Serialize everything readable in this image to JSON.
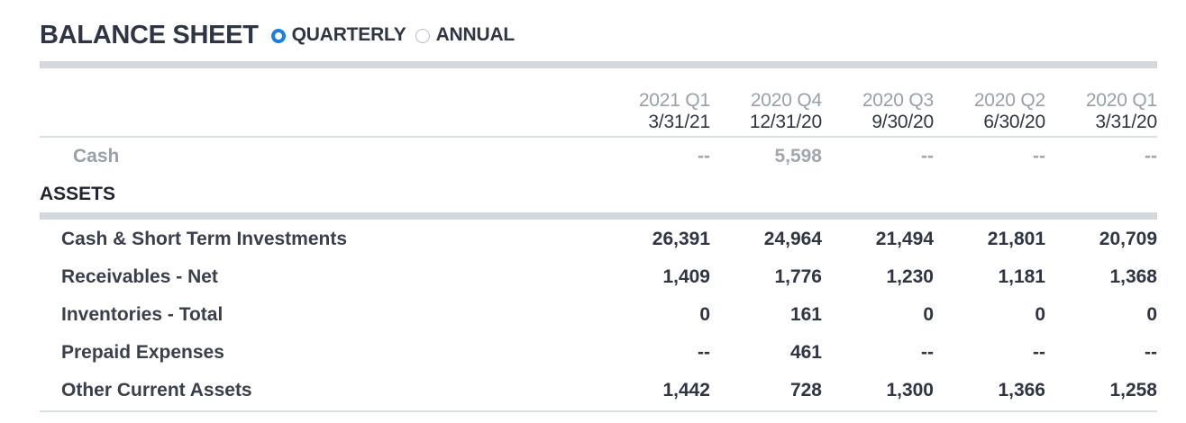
{
  "header": {
    "title": "BALANCE SHEET",
    "options": [
      {
        "label": "QUARTERLY",
        "selected": true
      },
      {
        "label": "ANNUAL",
        "selected": false
      }
    ]
  },
  "columns": [
    {
      "quarter": "2021 Q1",
      "date": "3/31/21"
    },
    {
      "quarter": "2020 Q4",
      "date": "12/31/20"
    },
    {
      "quarter": "2020 Q3",
      "date": "9/30/20"
    },
    {
      "quarter": "2020 Q2",
      "date": "6/30/20"
    },
    {
      "quarter": "2020 Q1",
      "date": "3/31/20"
    }
  ],
  "cash_row": {
    "label": "Cash",
    "values": [
      "--",
      "5,598",
      "--",
      "--",
      "--"
    ]
  },
  "section": {
    "title": "ASSETS"
  },
  "rows": [
    {
      "label": "Cash & Short Term Investments",
      "values": [
        "26,391",
        "24,964",
        "21,494",
        "21,801",
        "20,709"
      ]
    },
    {
      "label": "Receivables - Net",
      "values": [
        "1,409",
        "1,776",
        "1,230",
        "1,181",
        "1,368"
      ]
    },
    {
      "label": "Inventories - Total",
      "values": [
        "0",
        "161",
        "0",
        "0",
        "0"
      ]
    },
    {
      "label": "Prepaid Expenses",
      "values": [
        "--",
        "461",
        "--",
        "--",
        "--"
      ]
    },
    {
      "label": "Other Current Assets",
      "values": [
        "1,442",
        "728",
        "1,300",
        "1,366",
        "1,258"
      ]
    }
  ],
  "colors": {
    "radio_selected": "#1a7ee0",
    "rule": "#d4d8dd",
    "muted_text": "#9aa0a8"
  }
}
